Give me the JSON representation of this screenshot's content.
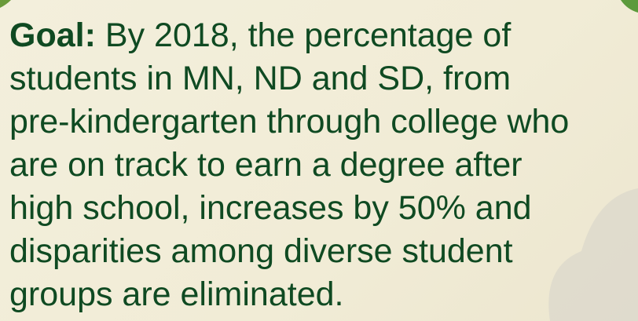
{
  "goal": {
    "label": "Goal:",
    "lines": [
      "By 2018, the percentage of",
      "students in MN, ND and SD, from",
      "pre-kindergarten through college who",
      "are on track to earn a degree after",
      "high school, increases by 50% and",
      "disparities among diverse student",
      "groups are eliminated."
    ]
  }
}
